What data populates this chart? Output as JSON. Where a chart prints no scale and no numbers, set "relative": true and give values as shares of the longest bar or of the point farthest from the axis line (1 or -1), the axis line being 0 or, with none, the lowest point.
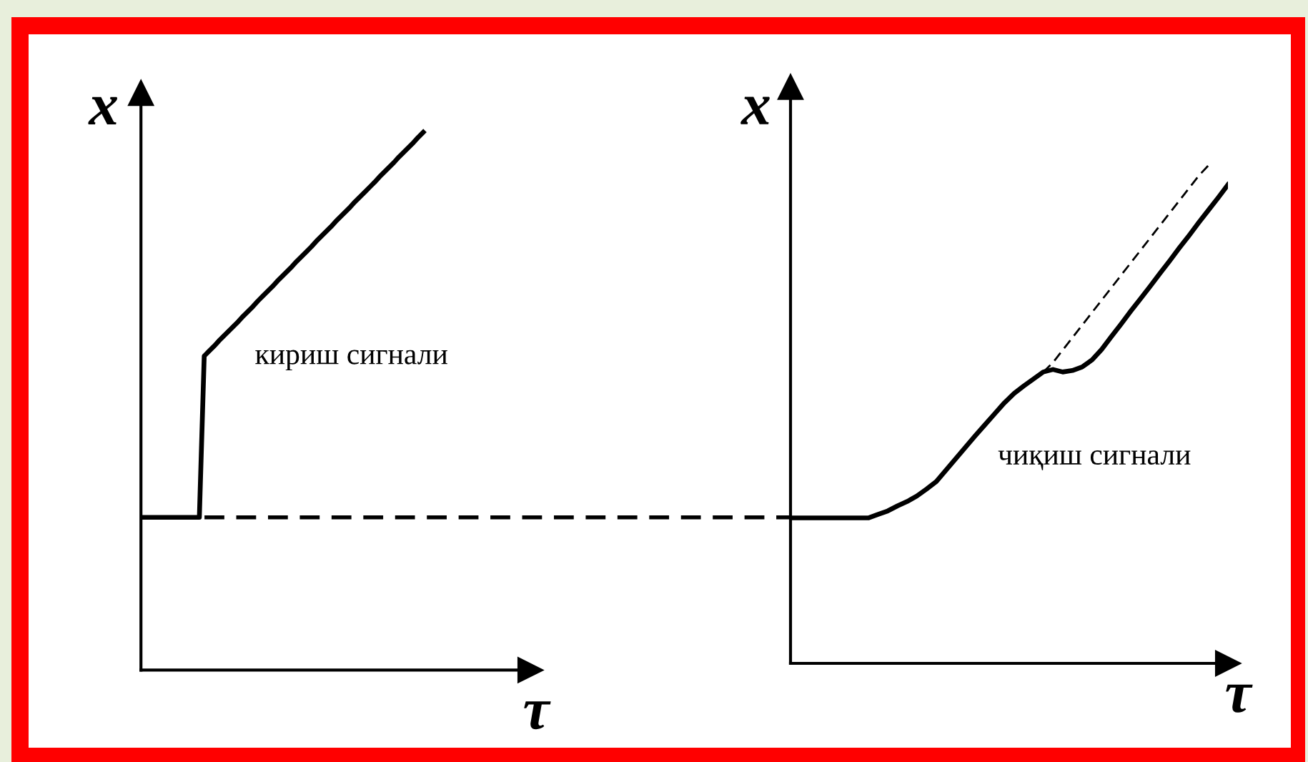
{
  "chart_data": [
    {
      "type": "line",
      "relative": true,
      "xlabel": "τ",
      "ylabel": "x",
      "categories": [
        null,
        null,
        null,
        null,
        null,
        null,
        null,
        null,
        null,
        null,
        null,
        null,
        null,
        null,
        null,
        null,
        null,
        null,
        null,
        null,
        null,
        null,
        null,
        null,
        null,
        null,
        null,
        null,
        null,
        null,
        null,
        null,
        null,
        null,
        null,
        null,
        null,
        null,
        null,
        null,
        null,
        null,
        null,
        null,
        null,
        null,
        null,
        null,
        null,
        null,
        null,
        null,
        null,
        null,
        null,
        null,
        null,
        null,
        null,
        null,
        null,
        null,
        null,
        null,
        null,
        null,
        null,
        null,
        null,
        null,
        null,
        null,
        null,
        null,
        null,
        null,
        null,
        null,
        null,
        null,
        null
      ],
      "series": [
        {
          "name": "кириш сигнали",
          "color": "#000000",
          "values": [
            0.284,
            0.284,
            0.284,
            0.284,
            0.284,
            0.284,
            0.284,
            0.284,
            0.284,
            0.284,
            0.284,
            0.284,
            0.284,
            0.584,
            0.593,
            0.602,
            0.612,
            0.621,
            0.63,
            0.639,
            0.648,
            0.658,
            0.667,
            0.676,
            0.686,
            0.695,
            0.704,
            0.713,
            0.723,
            0.732,
            0.741,
            0.75,
            0.76,
            0.769,
            0.778,
            0.787,
            0.797,
            0.806,
            0.815,
            0.824,
            0.834,
            0.843,
            0.852,
            0.861,
            0.871,
            0.88,
            0.889,
            0.898,
            0.907,
            0.917,
            0.926,
            0.935,
            0.944,
            0.954,
            0.963,
            0.972,
            0.981,
            0.991,
            1.0,
            null,
            null,
            null,
            null,
            null,
            null,
            null,
            null,
            null,
            null,
            null,
            null,
            null,
            null,
            null,
            null,
            null,
            null,
            null,
            null,
            null,
            null
          ]
        }
      ],
      "ref_lines": [
        {
          "axis": "y",
          "value": 0.284,
          "line_style": "dashed",
          "color": "#000000"
        }
      ]
    },
    {
      "type": "line",
      "relative": true,
      "xlabel": "τ",
      "ylabel": "x",
      "categories": [
        null,
        null,
        null,
        null,
        null,
        null,
        null,
        null,
        null,
        null,
        null,
        null,
        null,
        null,
        null,
        null,
        null,
        null,
        null,
        null,
        null,
        null,
        null,
        null,
        null,
        null,
        null,
        null,
        null,
        null,
        null,
        null,
        null,
        null,
        null,
        null,
        null,
        null,
        null,
        null,
        null,
        null,
        null,
        null,
        null,
        null
      ],
      "series": [
        {
          "name": "чиқиш сигнали",
          "color": "#000000",
          "values": [
            0.292,
            0.292,
            0.292,
            0.292,
            0.292,
            0.292,
            0.292,
            0.292,
            0.292,
            0.299,
            0.306,
            0.316,
            0.325,
            0.336,
            0.35,
            0.365,
            0.388,
            0.411,
            0.434,
            0.457,
            0.479,
            0.501,
            0.523,
            0.542,
            0.557,
            0.571,
            0.585,
            0.59,
            0.585,
            0.588,
            0.595,
            0.609,
            0.63,
            0.656,
            0.681,
            0.707,
            0.732,
            0.757,
            0.783,
            0.808,
            0.834,
            0.859,
            0.885,
            0.91,
            0.935,
            0.961
          ]
        },
        {
          "color": "#000000",
          "line_style": "dashed",
          "values": [
            null,
            null,
            null,
            null,
            null,
            null,
            null,
            null,
            null,
            null,
            null,
            null,
            null,
            null,
            null,
            null,
            null,
            null,
            null,
            null,
            null,
            null,
            null,
            null,
            null,
            null,
            0.585,
            0.604,
            0.629,
            0.654,
            0.679,
            0.704,
            0.729,
            0.754,
            0.779,
            0.804,
            0.829,
            0.854,
            0.879,
            0.904,
            0.929,
            0.954,
            0.979,
            1.0,
            null,
            null
          ]
        }
      ]
    }
  ]
}
